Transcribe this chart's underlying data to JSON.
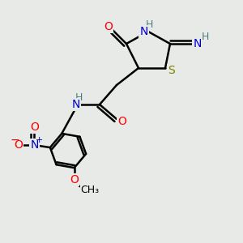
{
  "bg_color": "#e8eae8",
  "bond_color": "#000000",
  "bond_width": 1.8,
  "atom_colors": {
    "O": "#ff0000",
    "N": "#0000cc",
    "S": "#808000",
    "H": "#4a8080",
    "C": "#000000"
  },
  "font_size": 10,
  "small_font_size": 9
}
